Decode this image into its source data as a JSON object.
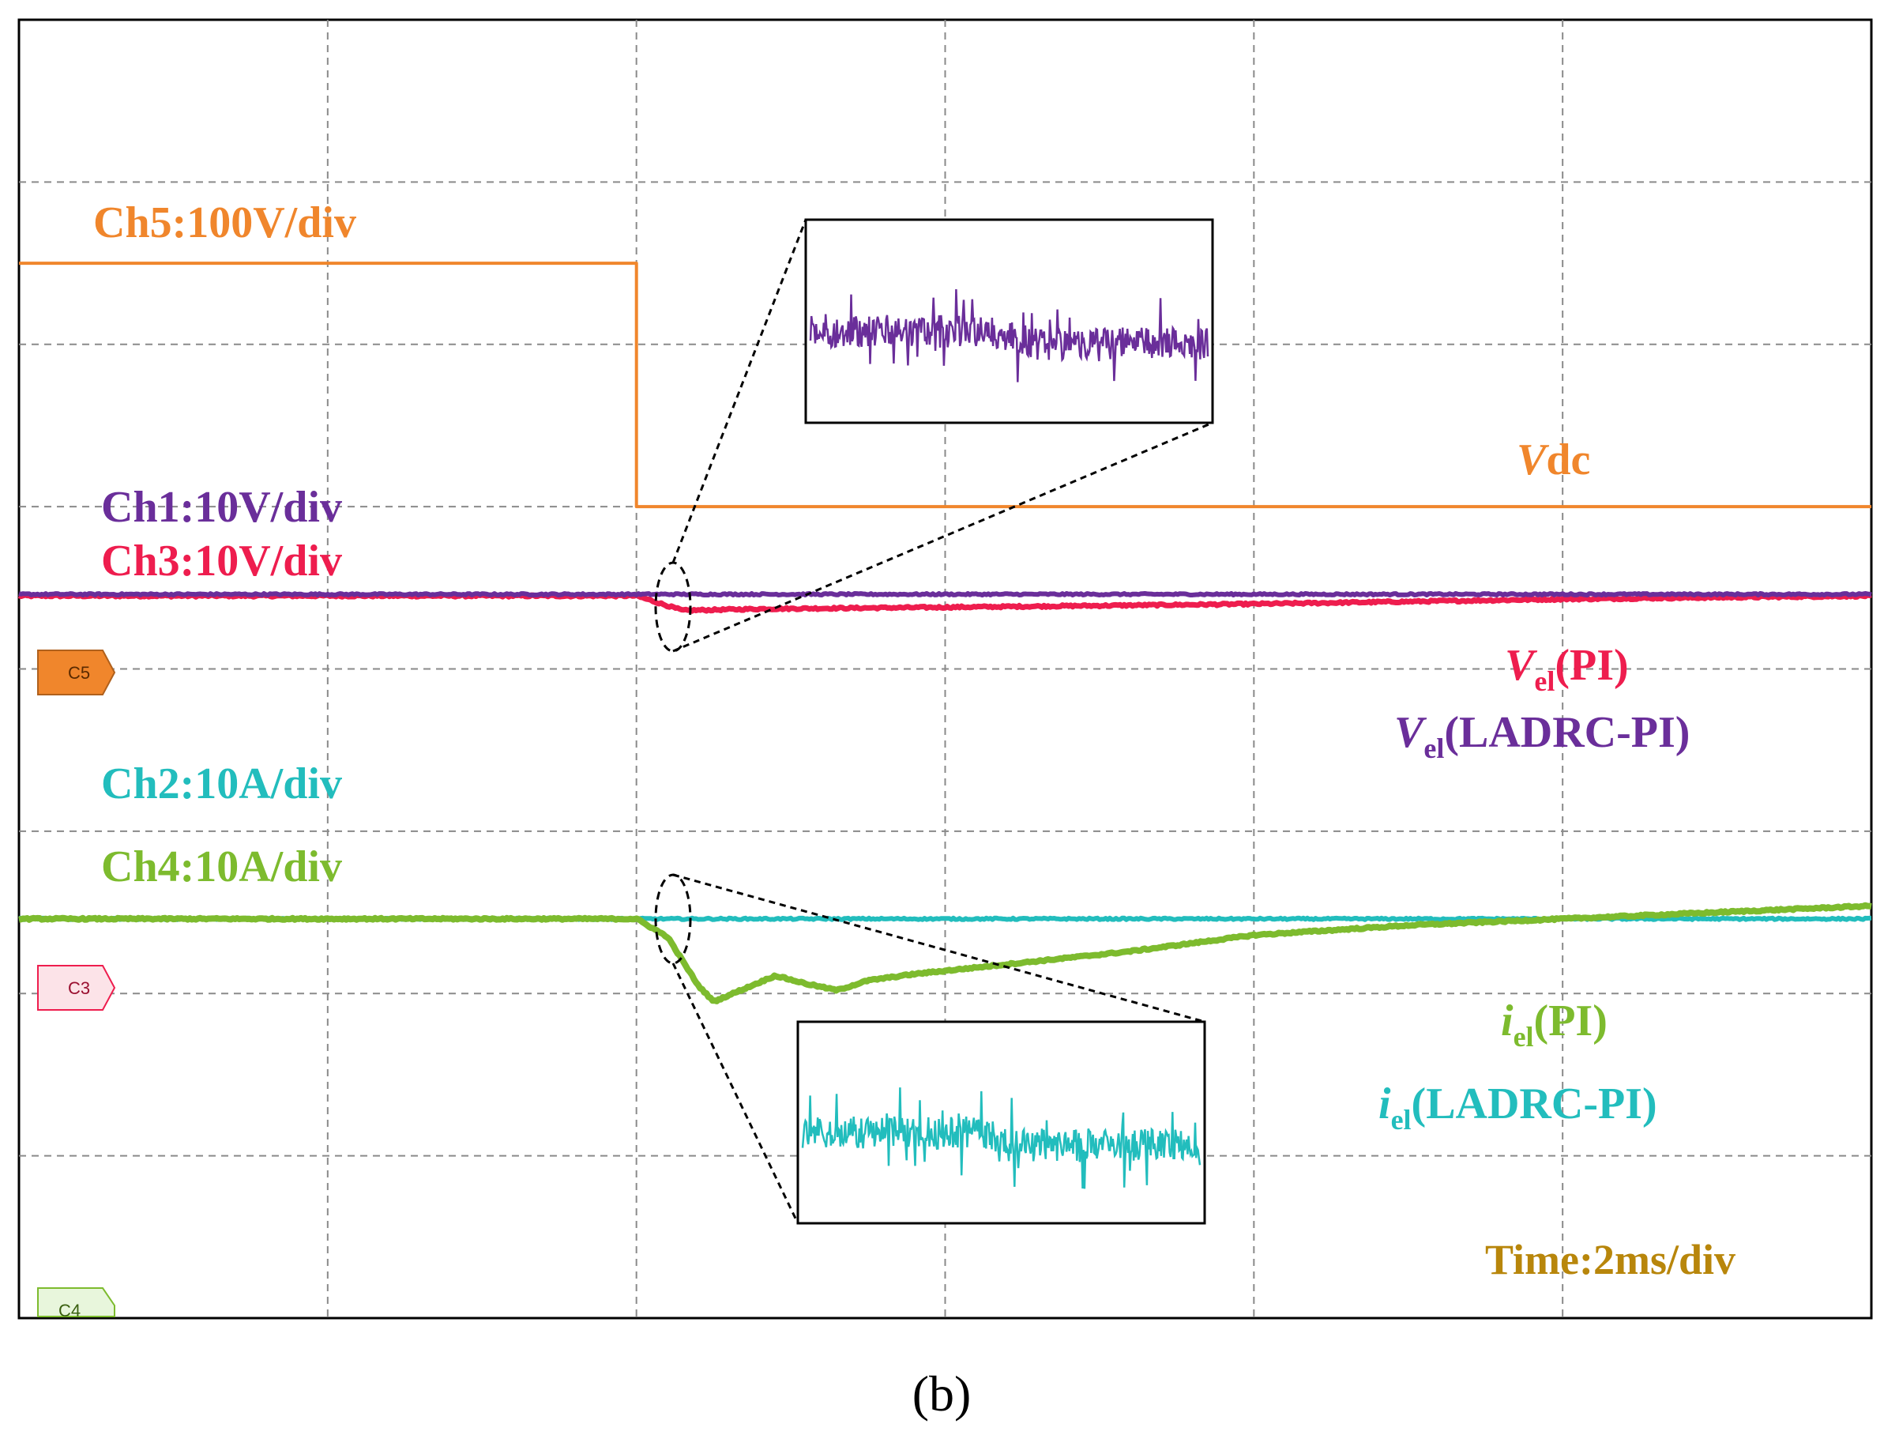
{
  "chart_data": {
    "type": "line",
    "title": "",
    "grid": true,
    "divisions": {
      "x": 6,
      "y": 8
    },
    "time_scale": "Time:2ms/div",
    "xlim_div": [
      0,
      6
    ],
    "ylim_div": [
      0,
      8
    ],
    "step_time_div": 2.0,
    "series": [
      {
        "name": "Vdc",
        "channel": "Ch5",
        "scale": "Ch5:100V/div",
        "color": "#F0862C",
        "x": [
          0,
          2.0,
          2.0,
          6.0
        ],
        "y": [
          6.5,
          6.5,
          5.0,
          5.0
        ]
      },
      {
        "name": "Vel(LADRC-PI)",
        "channel": "Ch1",
        "scale": "Ch1:10V/div",
        "color": "#6A2E9A",
        "x": [
          0,
          2.0,
          6.0
        ],
        "y": [
          4.46,
          4.46,
          4.46
        ]
      },
      {
        "name": "Vel(PI)",
        "channel": "Ch3",
        "scale": "Ch3:10V/div",
        "color": "#EE1D4E",
        "x": [
          0,
          2.0,
          2.15,
          2.4,
          3.0,
          4.0,
          5.0,
          6.0
        ],
        "y": [
          4.45,
          4.45,
          4.36,
          4.37,
          4.38,
          4.4,
          4.43,
          4.45
        ]
      },
      {
        "name": "iel(LADRC-PI)",
        "channel": "Ch2",
        "scale": "Ch2:10A/div",
        "color": "#22BDBD",
        "x": [
          0,
          2.0,
          6.0
        ],
        "y": [
          2.46,
          2.46,
          2.46
        ]
      },
      {
        "name": "iel(PI)",
        "channel": "Ch4",
        "scale": "Ch4:10A/div",
        "color": "#7DBB2E",
        "x": [
          0,
          2.0,
          2.1,
          2.2,
          2.25,
          2.35,
          2.45,
          2.55,
          2.65,
          2.75,
          2.9,
          3.2,
          3.6,
          4.0,
          4.5,
          5.0,
          5.5,
          6.0
        ],
        "y": [
          2.46,
          2.46,
          2.35,
          2.05,
          1.95,
          2.03,
          2.11,
          2.06,
          2.02,
          2.08,
          2.12,
          2.18,
          2.26,
          2.36,
          2.42,
          2.46,
          2.5,
          2.54
        ]
      }
    ],
    "labels": {
      "ch5_scale": "Ch5:100V/div",
      "ch1_scale": "Ch1:10V/div",
      "ch3_scale": "Ch3:10V/div",
      "ch2_scale": "Ch2:10A/div",
      "ch4_scale": "Ch4:10A/div",
      "vdc_italic": "V",
      "vdc_rest": "dc",
      "vel_pi_italic": "V",
      "vel_pi_sub": "el",
      "vel_pi_rest": "(PI)",
      "vel_ladrc_italic": "V",
      "vel_ladrc_sub": "el",
      "vel_ladrc_rest": "(LADRC-PI)",
      "iel_pi_italic": "i",
      "iel_pi_sub": "el",
      "iel_pi_rest": "(PI)",
      "iel_ladrc_italic": "i",
      "iel_ladrc_sub": "el",
      "iel_ladrc_rest": "(LADRC-PI)",
      "time": "Time:2ms/div"
    },
    "markers": [
      "C5",
      "C3",
      "C4"
    ],
    "caption": "(b)"
  },
  "colors": {
    "ch5": "#F0862C",
    "ch1": "#6A2E9A",
    "ch3": "#EE1D4E",
    "ch2": "#22BDBD",
    "ch4": "#7DBB2E",
    "time": "#B8860B",
    "c5_badge": "#F0862C",
    "c3_badge": "#FCE3E8",
    "c4_badge": "#E8F6DC"
  }
}
